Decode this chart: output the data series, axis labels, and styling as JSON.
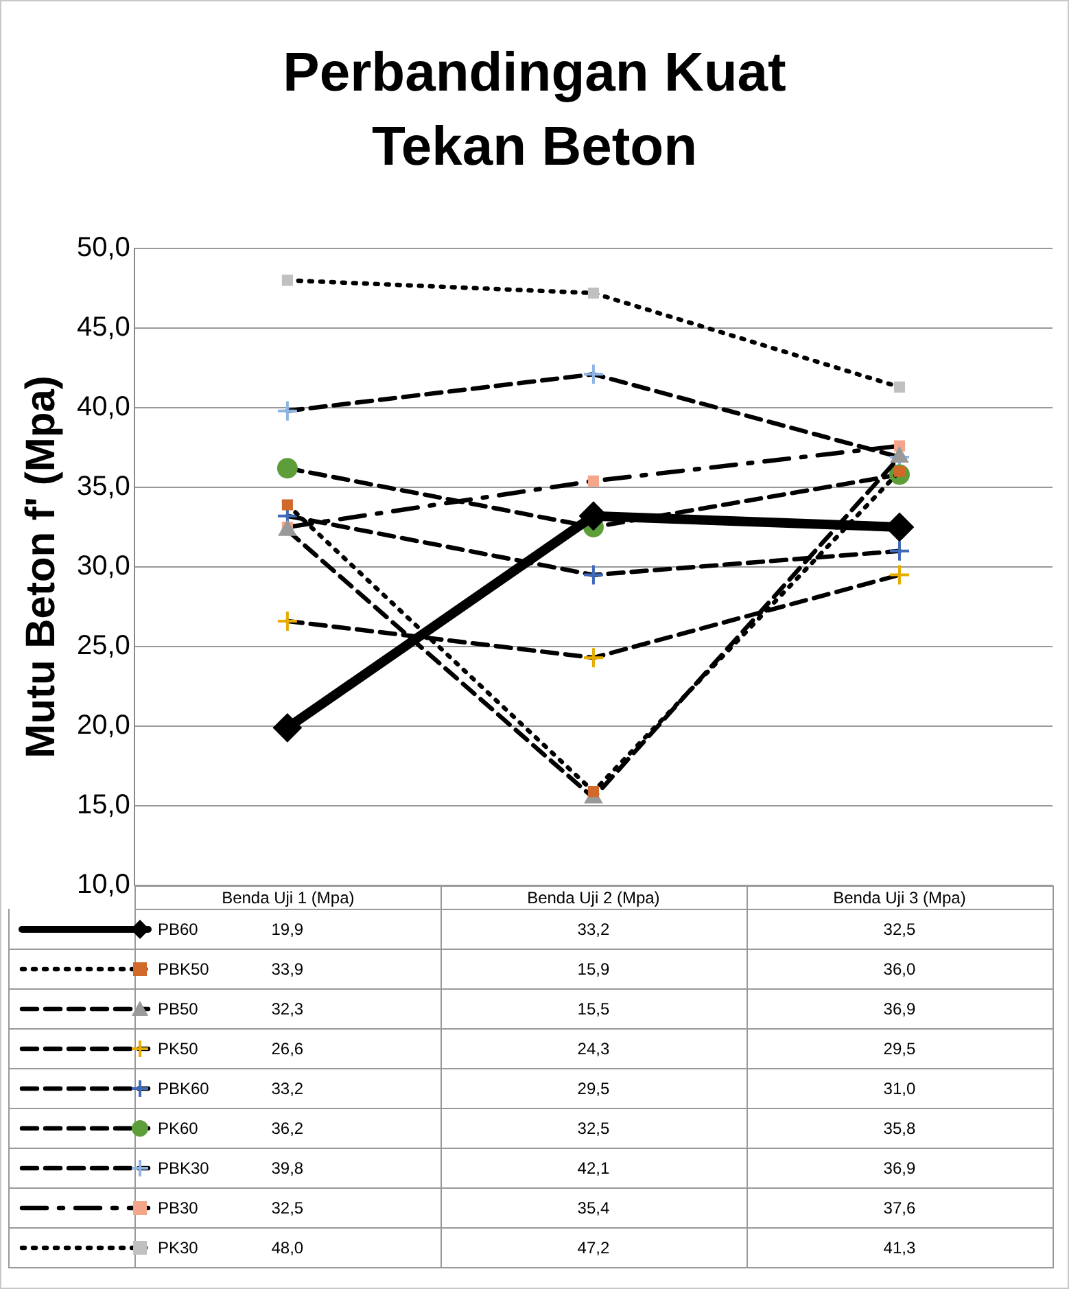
{
  "chart_data": {
    "type": "line",
    "title": "Perbandingan Kuat Tekan Beton",
    "ylabel": "Mutu Beton f' (Mpa)",
    "categories": [
      "Benda Uji 1 (Mpa)",
      "Benda Uji 2 (Mpa)",
      "Benda Uji 3 (Mpa)"
    ],
    "ylim": [
      10,
      50
    ],
    "yticks": [
      {
        "value": 10,
        "label": "10,0"
      },
      {
        "value": 15,
        "label": "15,0"
      },
      {
        "value": 20,
        "label": "20,0"
      },
      {
        "value": 25,
        "label": "25,0"
      },
      {
        "value": 30,
        "label": "30,0"
      },
      {
        "value": 35,
        "label": "35,0"
      },
      {
        "value": 40,
        "label": "40,0"
      },
      {
        "value": 45,
        "label": "45,0"
      },
      {
        "value": 50,
        "label": "50,0"
      }
    ],
    "grid": "y",
    "legend": "bottom",
    "series": [
      {
        "name": "PB60",
        "color": "#000000",
        "marker": "diamond",
        "line_style": "solid",
        "values": [
          19.9,
          33.2,
          32.5
        ],
        "value_labels": [
          "19,9",
          "33,2",
          "32,5"
        ]
      },
      {
        "name": "PBK50",
        "color": "#d0692a",
        "marker": "square",
        "line_style": "dotted",
        "values": [
          33.9,
          15.9,
          36.0
        ],
        "value_labels": [
          "33,9",
          "15,9",
          "36,0"
        ]
      },
      {
        "name": "PB50",
        "color": "#999999",
        "marker": "triangle",
        "line_style": "dashed",
        "values": [
          32.3,
          15.5,
          36.9
        ],
        "value_labels": [
          "32,3",
          "15,5",
          "36,9"
        ]
      },
      {
        "name": "PK50",
        "color": "#e6ac00",
        "marker": "cross",
        "line_style": "dashed",
        "values": [
          26.6,
          24.3,
          29.5
        ],
        "value_labels": [
          "26,6",
          "24,3",
          "29,5"
        ]
      },
      {
        "name": "PBK60",
        "color": "#4169b9",
        "marker": "cross",
        "line_style": "dashed",
        "values": [
          33.2,
          29.5,
          31.0
        ],
        "value_labels": [
          "33,2",
          "29,5",
          "31,0"
        ]
      },
      {
        "name": "PK60",
        "color": "#5e9e3a",
        "marker": "circle",
        "line_style": "dashed",
        "values": [
          36.2,
          32.5,
          35.8
        ],
        "value_labels": [
          "36,2",
          "32,5",
          "35,8"
        ]
      },
      {
        "name": "PBK30",
        "color": "#8eb4e3",
        "marker": "cross",
        "line_style": "dashed",
        "values": [
          39.8,
          42.1,
          36.9
        ],
        "value_labels": [
          "39,8",
          "42,1",
          "36,9"
        ]
      },
      {
        "name": "PB30",
        "color": "#f4a58a",
        "marker": "square",
        "line_style": "dashdot",
        "values": [
          32.5,
          35.4,
          37.6
        ],
        "value_labels": [
          "32,5",
          "35,4",
          "37,6"
        ]
      },
      {
        "name": "PK30",
        "color": "#c0c0c0",
        "marker": "square",
        "line_style": "dotted",
        "values": [
          48.0,
          47.2,
          41.3
        ],
        "value_labels": [
          "48,0",
          "47,2",
          "41,3"
        ]
      }
    ]
  }
}
